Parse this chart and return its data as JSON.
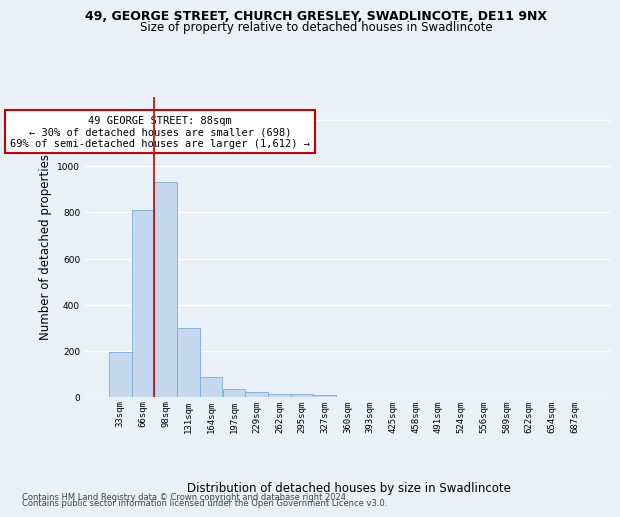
{
  "title_line1": "49, GEORGE STREET, CHURCH GRESLEY, SWADLINCOTE, DE11 9NX",
  "title_line2": "Size of property relative to detached houses in Swadlincote",
  "xlabel": "Distribution of detached houses by size in Swadlincote",
  "ylabel": "Number of detached properties",
  "footer_line1": "Contains HM Land Registry data © Crown copyright and database right 2024.",
  "footer_line2": "Contains public sector information licensed under the Open Government Licence v3.0.",
  "annotation_title": "49 GEORGE STREET: 88sqm",
  "annotation_line2": "← 30% of detached houses are smaller (698)",
  "annotation_line3": "69% of semi-detached houses are larger (1,612) →",
  "bar_labels": [
    "33sqm",
    "66sqm",
    "98sqm",
    "131sqm",
    "164sqm",
    "197sqm",
    "229sqm",
    "262sqm",
    "295sqm",
    "327sqm",
    "360sqm",
    "393sqm",
    "425sqm",
    "458sqm",
    "491sqm",
    "524sqm",
    "556sqm",
    "589sqm",
    "622sqm",
    "654sqm",
    "687sqm"
  ],
  "bar_values": [
    195,
    810,
    930,
    300,
    85,
    35,
    20,
    15,
    12,
    10,
    0,
    0,
    0,
    0,
    0,
    0,
    0,
    0,
    0,
    0,
    0
  ],
  "bar_color": "#c5d8ed",
  "bar_edge_color": "#7aaed4",
  "vline_x": 1.5,
  "ylim": [
    0,
    1300
  ],
  "yticks": [
    0,
    200,
    400,
    600,
    800,
    1000,
    1200
  ],
  "bg_color": "#eaf0f8",
  "plot_bg_color": "#eaf0f8",
  "grid_color": "#ffffff",
  "annotation_box_color": "#ffffff",
  "annotation_box_edge": "#cc0000",
  "title_fontsize": 9,
  "subtitle_fontsize": 8.5,
  "ylabel_fontsize": 8.5,
  "xlabel_fontsize": 8.5,
  "tick_fontsize": 6.5,
  "footer_fontsize": 6,
  "annotation_fontsize": 7.5
}
